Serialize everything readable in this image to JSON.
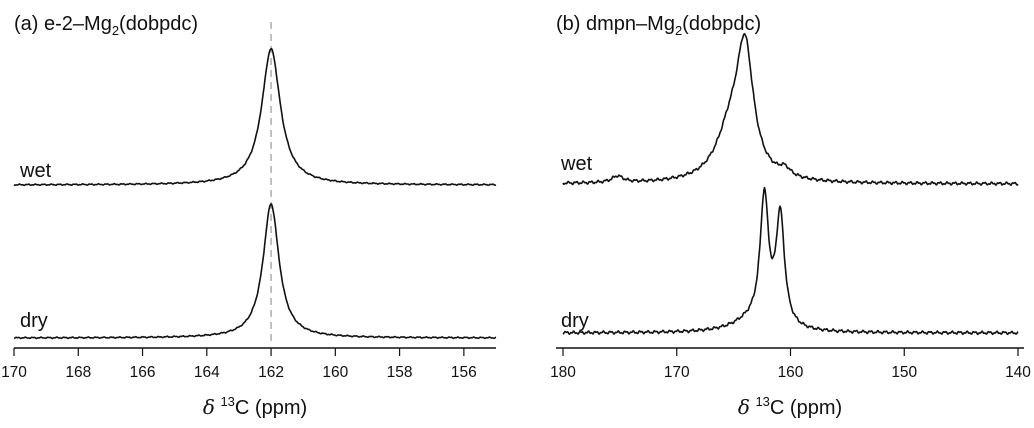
{
  "chart_data": [
    {
      "type": "line",
      "panel": "(a)",
      "title": {
        "prefix": "(a) e-2–Mg",
        "subscript": "2",
        "suffix": "(dobpdc)"
      },
      "xlabel": {
        "symbol": "δ",
        "superscript": "13",
        "text": "C (ppm)"
      },
      "xlim": [
        170,
        155
      ],
      "xticks": [
        "170",
        "168",
        "166",
        "164",
        "162",
        "160",
        "158",
        "156"
      ],
      "reference_line_x": 162,
      "series": [
        {
          "name": "wet",
          "peaks": [
            {
              "center": 162.0,
              "height": 1.0,
              "width": 0.35
            }
          ]
        },
        {
          "name": "dry",
          "peaks": [
            {
              "center": 162.0,
              "height": 1.0,
              "width": 0.3
            }
          ]
        }
      ]
    },
    {
      "type": "line",
      "panel": "(b)",
      "title": {
        "prefix": "(b) dmpn–Mg",
        "subscript": "2",
        "suffix": "(dobpdc)"
      },
      "xlabel": {
        "symbol": "δ",
        "superscript": "13",
        "text": "C (ppm)"
      },
      "xlim": [
        180,
        140
      ],
      "xticks": [
        "180",
        "170",
        "160",
        "150",
        "140"
      ],
      "series": [
        {
          "name": "wet",
          "peaks": [
            {
              "center": 164.0,
              "height": 0.95,
              "width": 0.9
            },
            {
              "center": 165.3,
              "height": 0.35,
              "width": 1.5
            },
            {
              "center": 160.5,
              "height": 0.06,
              "width": 0.6
            },
            {
              "center": 175.2,
              "height": 0.05,
              "width": 0.6
            }
          ]
        },
        {
          "name": "dry",
          "peaks": [
            {
              "center": 162.3,
              "height": 1.0,
              "width": 0.45
            },
            {
              "center": 160.9,
              "height": 0.87,
              "width": 0.45
            },
            {
              "center": 163.5,
              "height": 0.08,
              "width": 2.0
            }
          ]
        }
      ]
    }
  ]
}
